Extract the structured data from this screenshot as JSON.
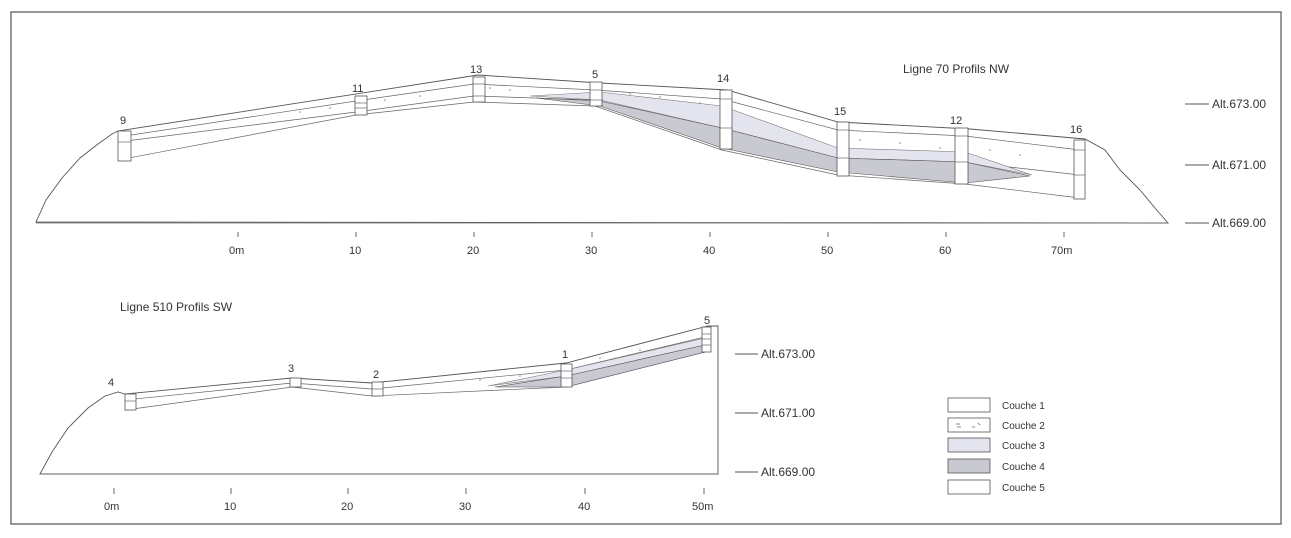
{
  "figure": {
    "top": {
      "title": "Ligne 70 Profils NW",
      "profiles": [
        "9",
        "11",
        "13",
        "5",
        "14",
        "15",
        "12",
        "16"
      ],
      "axis": [
        "0m",
        "10",
        "20",
        "30",
        "40",
        "50",
        "60",
        "70m"
      ],
      "altitudes": [
        "Alt.673.00",
        "Alt.671.00",
        "Alt.669.00"
      ]
    },
    "bottom": {
      "title": "Ligne 510 Profils SW",
      "profiles": [
        "4",
        "3",
        "2",
        "1",
        "5"
      ],
      "axis": [
        "0m",
        "10",
        "20",
        "30",
        "40",
        "50m"
      ],
      "altitudes": [
        "Alt.673.00",
        "Alt.671.00",
        "Alt.669.00"
      ]
    },
    "legend": [
      {
        "label": "Couche 1",
        "color": "#ffffff"
      },
      {
        "label": "Couche 2",
        "color": "#ffffff"
      },
      {
        "label": "Couche 3",
        "color": "#e3e4ee"
      },
      {
        "label": "Couche 4",
        "color": "#c9c9d1"
      },
      {
        "label": "Couche 5",
        "color": "#ffffff"
      }
    ]
  }
}
